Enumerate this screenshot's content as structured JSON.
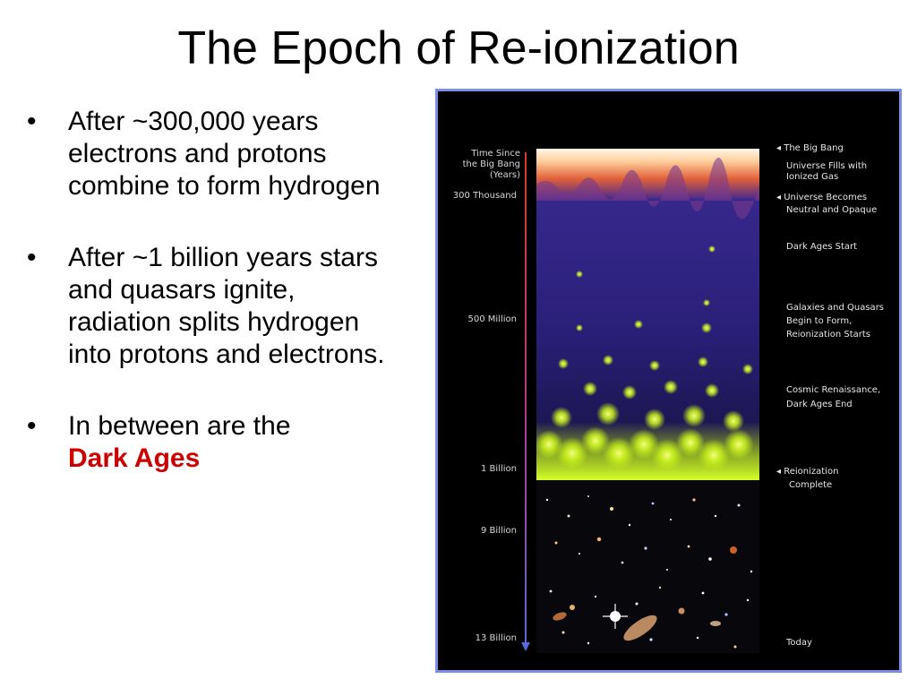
{
  "slide": {
    "title": "The Epoch of Re-ionization",
    "bullet_symbol": "•",
    "bullets": [
      {
        "text": "After ~300,000 years electrons and protons combine to form hydrogen"
      },
      {
        "text": "After ~1 billion years stars and quasars ignite, radiation splits hydrogen into protons and electrons."
      },
      {
        "text": "In between are the",
        "highlight": "Dark Ages"
      }
    ],
    "highlight_color": "#cc0000"
  },
  "figure": {
    "time_header": [
      "Time Since",
      "the Big Bang",
      "(Years)"
    ],
    "time_labels": [
      "300 Thousand",
      "500 Million",
      "1 Billion",
      "9 Billion",
      "13 Billion"
    ],
    "events": [
      "The Big Bang",
      "Universe Fills with",
      "Ionized Gas",
      "Universe Becomes",
      "Neutral and Opaque",
      "Dark Ages Start",
      "Galaxies and Quasars",
      "Begin to Form,",
      "Reionization Starts",
      "Cosmic Renaissance,",
      "Dark Ages End",
      "Reionization",
      "Complete",
      "Today"
    ],
    "arrow_symbol": "◂",
    "colors": {
      "border": "#7a8ee8",
      "background": "#000000",
      "timeline": "#c0392b",
      "big_bang_glow": "#ff7a3d",
      "dark_ages": "#3a2a8c",
      "reionization_glow": "#c8f21a"
    }
  }
}
